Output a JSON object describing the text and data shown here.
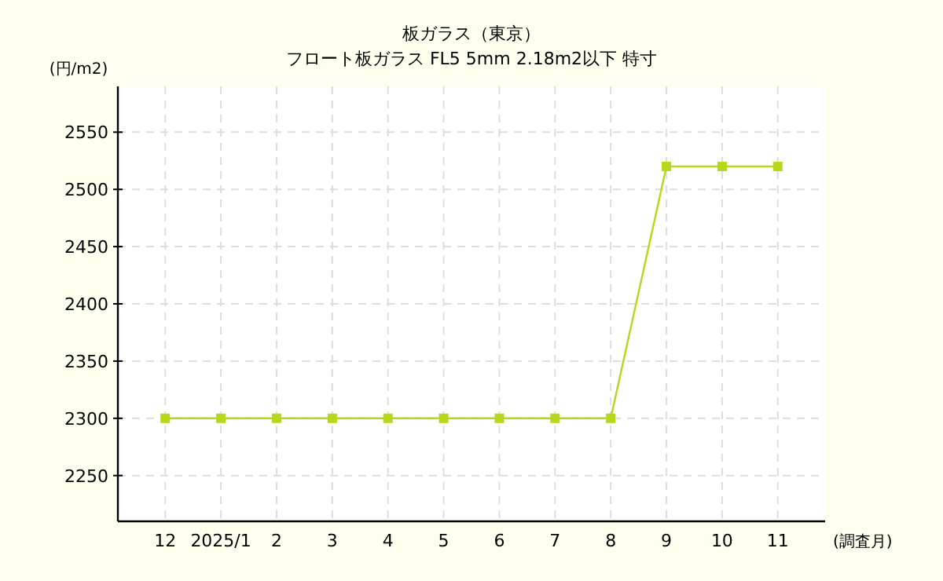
{
  "chart_data": {
    "type": "line",
    "title": "板ガラス（東京）",
    "subtitle": "フロート板ガラス FL5 5mm 2.18m2以下 特寸",
    "ylabel": "(円/m2)",
    "xlabel": "(調査月)",
    "categories": [
      "12",
      "2025/1",
      "2",
      "3",
      "4",
      "5",
      "6",
      "7",
      "8",
      "9",
      "10",
      "11"
    ],
    "series": [
      {
        "color": "#b5d91a",
        "values": [
          2300,
          2300,
          2300,
          2300,
          2300,
          2300,
          2300,
          2300,
          2300,
          2520,
          2520,
          2520
        ]
      }
    ],
    "ylim": [
      2210,
      2590
    ],
    "yticks": [
      2250,
      2300,
      2350,
      2400,
      2450,
      2500,
      2550
    ],
    "grid": true,
    "marker": "square",
    "line_style": "solid"
  }
}
